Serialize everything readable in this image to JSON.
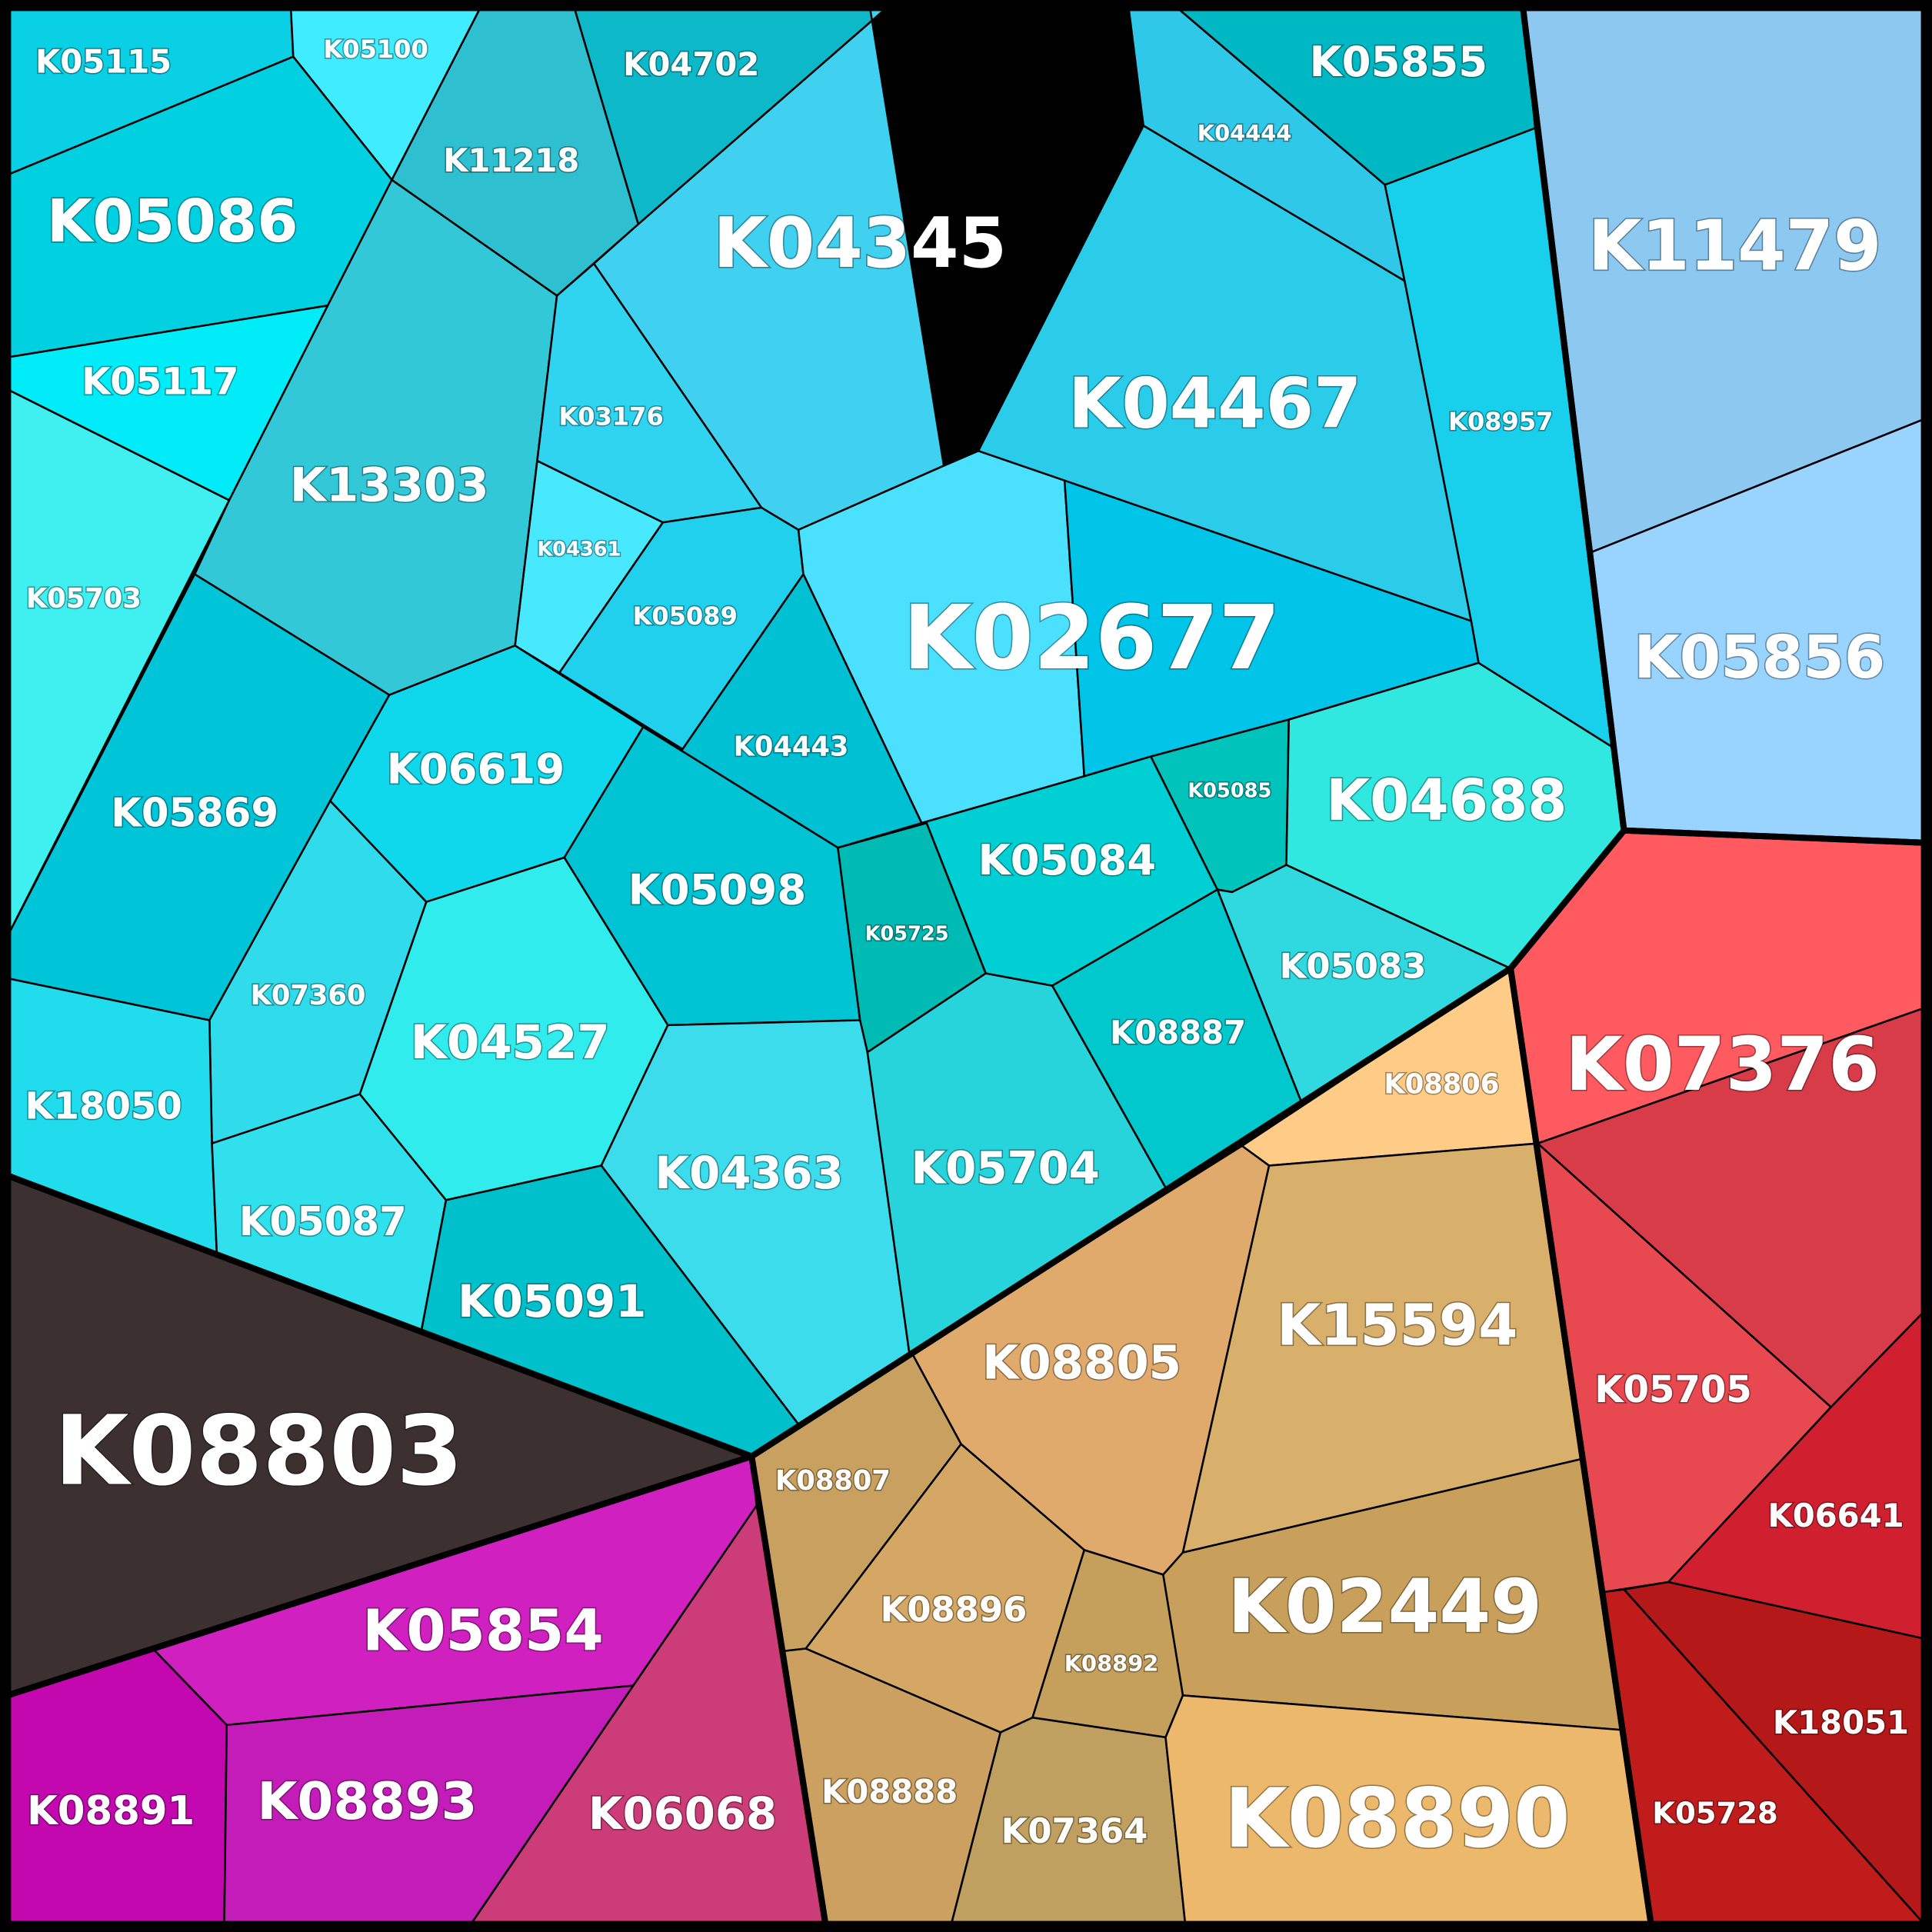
{
  "groups": [
    {
      "name": "cyan-group",
      "color": "#1fc8e0",
      "cells": [
        {
          "label": "K05115",
          "color": "#0ad0e6"
        },
        {
          "label": "K05100",
          "color": "#40ecff"
        },
        {
          "label": "K04702",
          "color": "#0db8c8"
        },
        {
          "label": "K05855",
          "color": "#00b8c4"
        },
        {
          "label": "K05086",
          "color": "#00d0e0"
        },
        {
          "label": "K11218",
          "color": "#2ec0d0"
        },
        {
          "label": "K04345",
          "color": "#40d0f0"
        },
        {
          "label": "K04444",
          "color": "#30c8e8"
        },
        {
          "label": "K05117",
          "color": "#00ecf8"
        },
        {
          "label": "K13303",
          "color": "#33c8d8"
        },
        {
          "label": "K03176",
          "color": "#30d4f0"
        },
        {
          "label": "K04467",
          "color": "#2accea"
        },
        {
          "label": "K08957",
          "color": "#18d0ec"
        },
        {
          "label": "K04361",
          "color": "#48e8ff"
        },
        {
          "label": "K05703",
          "color": "#40f0f0"
        },
        {
          "label": "K05089",
          "color": "#20d0ec"
        },
        {
          "label": "K02677",
          "color": "#4ce0ff"
        },
        {
          "label": "K05869",
          "color": "#00c4d8"
        },
        {
          "label": "K06619",
          "color": "#10d8ec"
        },
        {
          "label": "K04443",
          "color": "#00c0d4"
        },
        {
          "label": "K05085",
          "color": "#00c4bc"
        },
        {
          "label": "K04688",
          "color": "#30e8e0"
        },
        {
          "label": "K05098",
          "color": "#00c4d4"
        },
        {
          "label": "K05084",
          "color": "#00d0d4"
        },
        {
          "label": "K05725",
          "color": "#00bab4"
        },
        {
          "label": "K07360",
          "color": "#30dcec"
        },
        {
          "label": "K05083",
          "color": "#30d8e0"
        },
        {
          "label": "K04527",
          "color": "#30ecec"
        },
        {
          "label": "K08887",
          "color": "#00c8cc"
        },
        {
          "label": "K18050",
          "color": "#20dcec"
        },
        {
          "label": "K04363",
          "color": "#3cdcec"
        },
        {
          "label": "K05704",
          "color": "#28d4dc"
        },
        {
          "label": "K05087",
          "color": "#30e0ec"
        },
        {
          "label": "K05091",
          "color": "#00c0cc"
        }
      ]
    },
    {
      "name": "blue-group",
      "color": "#90c8f0",
      "cells": [
        {
          "label": "K11479",
          "color": "#8cc8f0"
        },
        {
          "label": "K05856",
          "color": "#98d4ff"
        }
      ]
    },
    {
      "name": "red-group",
      "color": "#e04050",
      "cells": [
        {
          "label": "K07376",
          "color": "#ff5a60"
        },
        {
          "label": "K05705",
          "color": "#e84850"
        },
        {
          "label": "K06641",
          "color": "#d02030"
        },
        {
          "label": "K18051",
          "color": "#b41818"
        },
        {
          "label": "K05728",
          "color": "#c01c1c"
        }
      ]
    },
    {
      "name": "orange-group",
      "color": "#d8a860",
      "cells": [
        {
          "label": "K08806",
          "color": "#ffcc88"
        },
        {
          "label": "K08805",
          "color": "#e0aa6c"
        },
        {
          "label": "K15594",
          "color": "#d8b06c"
        },
        {
          "label": "K08807",
          "color": "#c8a060"
        },
        {
          "label": "K08896",
          "color": "#d4a864"
        },
        {
          "label": "K02449",
          "color": "#c8a05c"
        },
        {
          "label": "K08892",
          "color": "#c4a05c"
        },
        {
          "label": "K08888",
          "color": "#cca060"
        },
        {
          "label": "K07364",
          "color": "#c0a060"
        },
        {
          "label": "K08890",
          "color": "#ecb86c"
        }
      ]
    },
    {
      "name": "dark-group",
      "color": "#3c3030",
      "cells": [
        {
          "label": "K08803",
          "color": "#3c3030"
        }
      ]
    },
    {
      "name": "magenta-group",
      "color": "#c820b8",
      "cells": [
        {
          "label": "K05854",
          "color": "#d020c0"
        },
        {
          "label": "K08891",
          "color": "#c408b0"
        },
        {
          "label": "K08893",
          "color": "#c41cb8"
        },
        {
          "label": "K06068",
          "color": "#cc3c78"
        }
      ]
    }
  ]
}
